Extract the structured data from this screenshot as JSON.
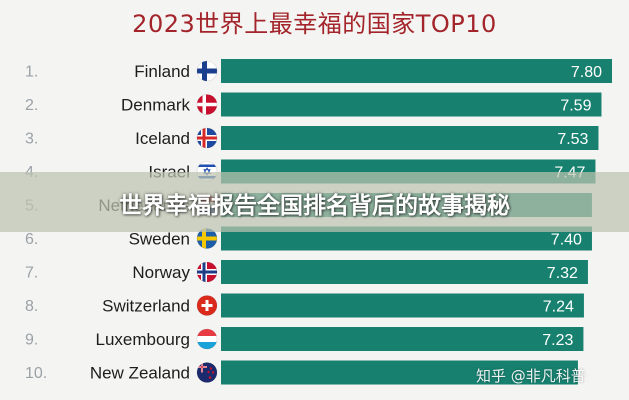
{
  "chart_data": {
    "type": "bar",
    "orientation": "horizontal",
    "title": "2023世界上最幸福的国家TOP10",
    "ranks": [
      "1.",
      "2.",
      "3.",
      "4.",
      "5.",
      "6.",
      "7.",
      "8.",
      "9.",
      "10."
    ],
    "categories": [
      "Finland",
      "Denmark",
      "Iceland",
      "Israel",
      "Netherlands",
      "Sweden",
      "Norway",
      "Switzerland",
      "Luxembourg",
      "New Zealand"
    ],
    "values": [
      7.8,
      7.59,
      7.53,
      7.47,
      7.4,
      7.4,
      7.32,
      7.24,
      7.23,
      7.12
    ],
    "value_labels": [
      "7.80",
      "7.59",
      "7.53",
      "7.47",
      "",
      "7.40",
      "7.32",
      "7.24",
      "7.23",
      ""
    ],
    "flags": [
      "finland-flag-icon",
      "denmark-flag-icon",
      "iceland-flag-icon",
      "israel-flag-icon",
      "netherlands-flag-icon",
      "sweden-flag-icon",
      "norway-flag-icon",
      "switzerland-flag-icon",
      "luxembourg-flag-icon",
      "new-zealand-flag-icon"
    ],
    "bar_color": "#17806f",
    "title_color": "#a3242a",
    "grid": false,
    "legend": "none"
  },
  "banner": {
    "text": "世界幸福报告全国排名背后的故事揭秘"
  },
  "watermark": {
    "text": "知乎 @非凡科普"
  }
}
